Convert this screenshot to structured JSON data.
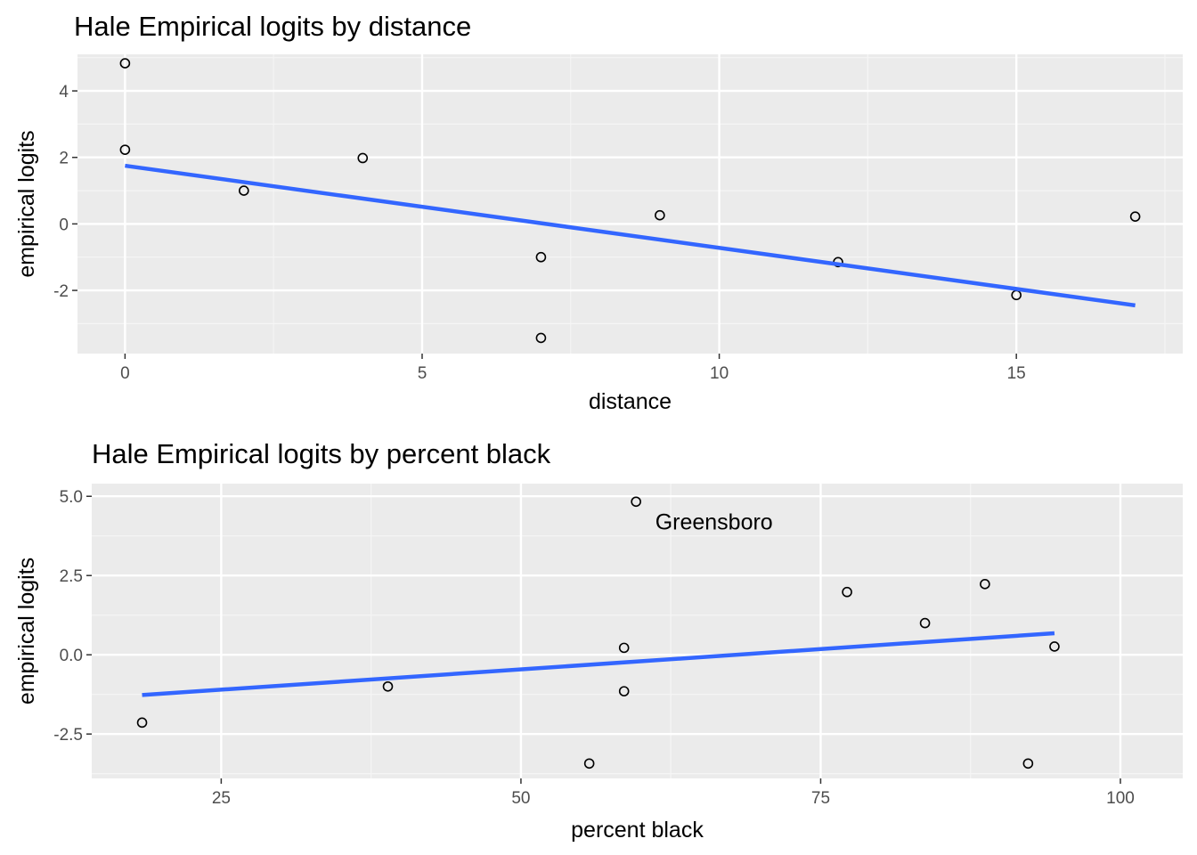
{
  "chart_data": [
    {
      "type": "scatter",
      "title": "Hale Empirical logits by distance",
      "xlabel": "distance",
      "ylabel": "empirical logits",
      "xlim": [
        -0.8,
        17.8
      ],
      "ylim": [
        -3.9,
        5.1
      ],
      "x_ticks": [
        0,
        5,
        10,
        15
      ],
      "y_ticks": [
        -2,
        0,
        2,
        4
      ],
      "grid": true,
      "points": [
        {
          "x": 0,
          "y": 4.83
        },
        {
          "x": 0,
          "y": 2.23
        },
        {
          "x": 2,
          "y": 1.0
        },
        {
          "x": 4,
          "y": 1.98
        },
        {
          "x": 7,
          "y": -1.0
        },
        {
          "x": 7,
          "y": -3.43
        },
        {
          "x": 9,
          "y": 0.26
        },
        {
          "x": 12,
          "y": -1.15
        },
        {
          "x": 15,
          "y": -2.14
        },
        {
          "x": 17,
          "y": 0.22
        }
      ],
      "trend_line": {
        "x": [
          0,
          17
        ],
        "y": [
          1.75,
          -2.45
        ],
        "color": "#3366ff"
      }
    },
    {
      "type": "scatter",
      "title": "Hale Empirical logits by percent black",
      "xlabel": "percent black",
      "ylabel": "empirical logits",
      "xlim": [
        14.2,
        105.2
      ],
      "ylim": [
        -3.9,
        5.4
      ],
      "x_ticks": [
        25,
        50,
        75,
        100
      ],
      "y_ticks": [
        -2.5,
        0.0,
        2.5,
        5.0
      ],
      "y_tick_labels": [
        "-2.5",
        "0.0",
        "2.5",
        "5.0"
      ],
      "grid": true,
      "points": [
        {
          "x": 59.6,
          "y": 4.83
        },
        {
          "x": 18.4,
          "y": -2.14
        },
        {
          "x": 38.9,
          "y": -1.0
        },
        {
          "x": 55.7,
          "y": -3.43
        },
        {
          "x": 58.6,
          "y": 0.22
        },
        {
          "x": 58.6,
          "y": -1.15
        },
        {
          "x": 77.2,
          "y": 1.98
        },
        {
          "x": 83.7,
          "y": 1.0
        },
        {
          "x": 88.7,
          "y": 2.23
        },
        {
          "x": 92.3,
          "y": -3.43
        },
        {
          "x": 94.5,
          "y": 0.26
        }
      ],
      "trend_line": {
        "x": [
          18.4,
          94.5
        ],
        "y": [
          -1.27,
          0.68
        ],
        "color": "#3366ff"
      },
      "annotations": [
        {
          "text": "Greensboro",
          "x": 61.2,
          "y": 4.2
        }
      ]
    }
  ]
}
